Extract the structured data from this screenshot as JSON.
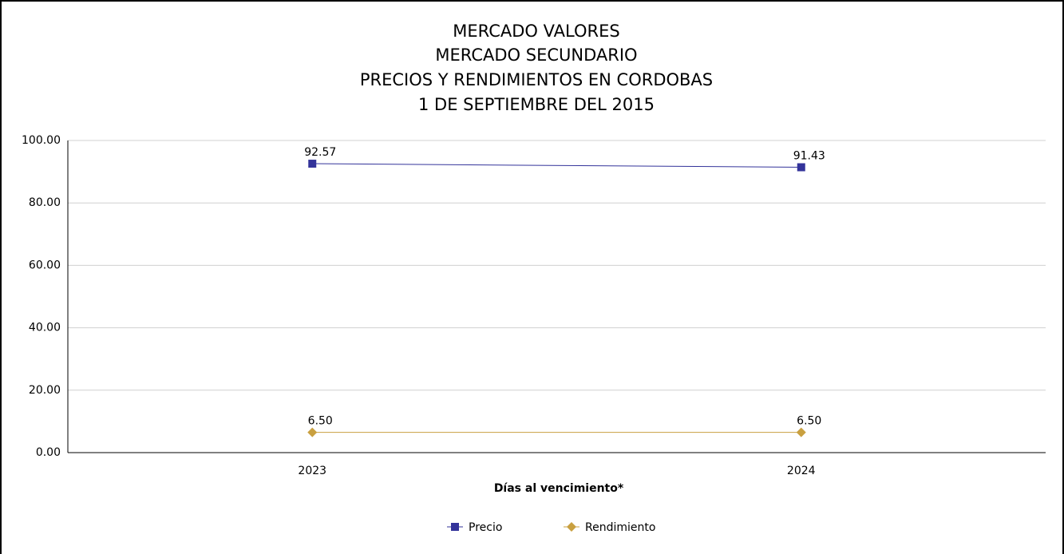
{
  "chart_data": {
    "type": "line",
    "title": [
      "MERCADO VALORES",
      "MERCADO SECUNDARIO",
      "PRECIOS Y RENDIMIENTOS EN CORDOBAS",
      "1 DE SEPTIEMBRE DEL 2015"
    ],
    "x_label": "Días al vencimiento*",
    "categories": [
      "2023",
      "2024"
    ],
    "series": [
      {
        "name": "Precio",
        "color": "#33339a",
        "marker": "square",
        "values": [
          92.57,
          91.43
        ]
      },
      {
        "name": "Rendimiento",
        "color": "#c9a040",
        "marker": "diamond",
        "values": [
          6.5,
          6.5
        ],
        "value_labels": [
          "6.50",
          "6.50"
        ]
      }
    ],
    "ylim": [
      0,
      100
    ],
    "yticks": [
      {
        "value": 0,
        "label": "0.00"
      },
      {
        "value": 20,
        "label": "20.00"
      },
      {
        "value": 40,
        "label": "40.00"
      },
      {
        "value": 60,
        "label": "60.00"
      },
      {
        "value": 80,
        "label": "80.00"
      },
      {
        "value": 100,
        "label": "100.00"
      }
    ],
    "grid": true,
    "legend": "bottom"
  }
}
